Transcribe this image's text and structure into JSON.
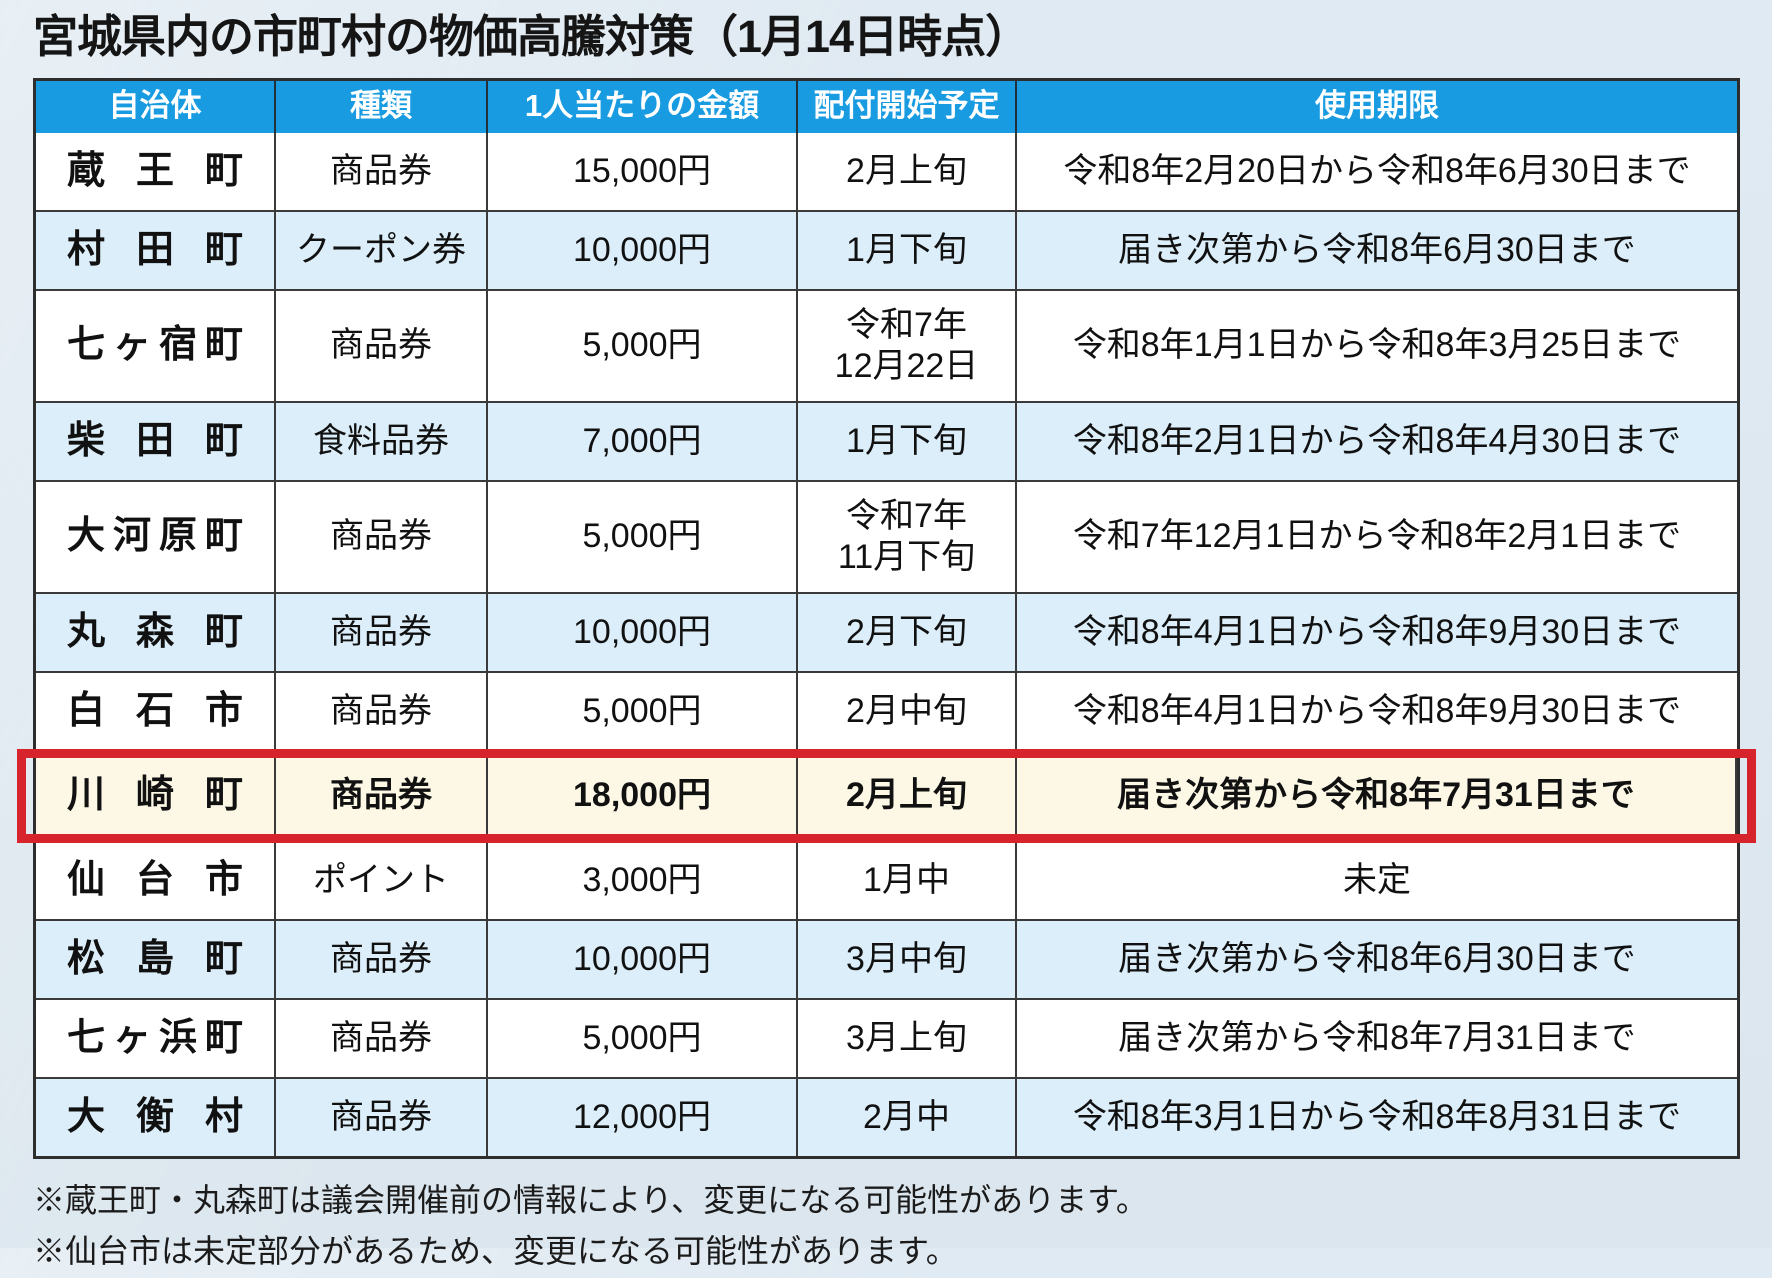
{
  "page": {
    "title": "宮城県内の市町村の物価高騰対策（1月14日時点）"
  },
  "colors": {
    "page_background": "#dde7f0",
    "header_background": "#189be1",
    "header_text": "#ffffff",
    "row_alt_background": "#dceef9",
    "highlight_background": "#fcf8e5",
    "highlight_border": "#d7242c",
    "grid_line": "#3a3a3a"
  },
  "table": {
    "headers": [
      "自治体",
      "種類",
      "1人当たりの金額",
      "配付開始予定",
      "使用期限"
    ],
    "rows": [
      {
        "municipality": "蔵王町",
        "type": "商品券",
        "amount": "15,000円",
        "start": "2月上旬",
        "deadline": "令和8年2月20日から令和8年6月30日まで",
        "highlight": false
      },
      {
        "municipality": "村田町",
        "type": "クーポン券",
        "amount": "10,000円",
        "start": "1月下旬",
        "deadline": "届き次第から令和8年6月30日まで",
        "highlight": false
      },
      {
        "municipality": "七ヶ宿町",
        "type": "商品券",
        "amount": "5,000円",
        "start": "令和7年\n12月22日",
        "deadline": "令和8年1月1日から令和8年3月25日まで",
        "highlight": false
      },
      {
        "municipality": "柴田町",
        "type": "食料品券",
        "amount": "7,000円",
        "start": "1月下旬",
        "deadline": "令和8年2月1日から令和8年4月30日まで",
        "highlight": false
      },
      {
        "municipality": "大河原町",
        "type": "商品券",
        "amount": "5,000円",
        "start": "令和7年\n11月下旬",
        "deadline": "令和7年12月1日から令和8年2月1日まで",
        "highlight": false
      },
      {
        "municipality": "丸森町",
        "type": "商品券",
        "amount": "10,000円",
        "start": "2月下旬",
        "deadline": "令和8年4月1日から令和8年9月30日まで",
        "highlight": false
      },
      {
        "municipality": "白石市",
        "type": "商品券",
        "amount": "5,000円",
        "start": "2月中旬",
        "deadline": "令和8年4月1日から令和8年9月30日まで",
        "highlight": false
      },
      {
        "municipality": "川崎町",
        "type": "商品券",
        "amount": "18,000円",
        "start": "2月上旬",
        "deadline": "届き次第から令和8年7月31日まで",
        "highlight": true
      },
      {
        "municipality": "仙台市",
        "type": "ポイント",
        "amount": "3,000円",
        "start": "1月中",
        "deadline": "未定",
        "highlight": false
      },
      {
        "municipality": "松島町",
        "type": "商品券",
        "amount": "10,000円",
        "start": "3月中旬",
        "deadline": "届き次第から令和8年6月30日まで",
        "highlight": false
      },
      {
        "municipality": "七ヶ浜町",
        "type": "商品券",
        "amount": "5,000円",
        "start": "3月上旬",
        "deadline": "届き次第から令和8年7月31日まで",
        "highlight": false
      },
      {
        "municipality": "大衡村",
        "type": "商品券",
        "amount": "12,000円",
        "start": "2月中",
        "deadline": "令和8年3月1日から令和8年8月31日まで",
        "highlight": false
      }
    ]
  },
  "notes": [
    "※蔵王町・丸森町は議会開催前の情報により、変更になる可能性があります。",
    "※仙台市は未定部分があるため、変更になる可能性があります。"
  ]
}
